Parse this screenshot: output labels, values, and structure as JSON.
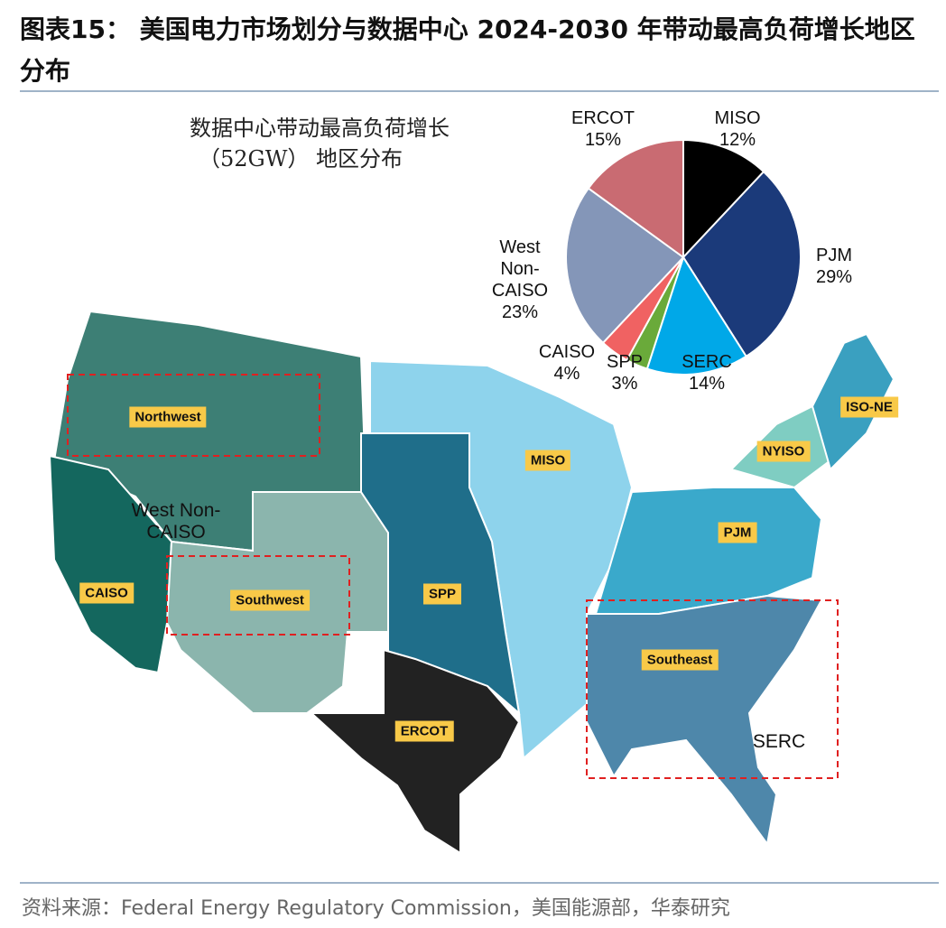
{
  "header": {
    "title": "图表15： 美国电力市场划分与数据中心 2024-2030 年带动最高负荷增长地区分布"
  },
  "chart_data": {
    "type": "pie",
    "title": [
      "数据中心带动最高负荷增长",
      "（52GW） 地区分布"
    ],
    "categories": [
      "MISO",
      "PJM",
      "SERC",
      "SPP",
      "CAISO",
      "West Non-CAISO",
      "ERCOT"
    ],
    "values": [
      12,
      29,
      14,
      3,
      4,
      23,
      15
    ],
    "value_labels": [
      "12%",
      "29%",
      "14%",
      "3%",
      "4%",
      "23%",
      "15%"
    ],
    "colors": [
      "#000000",
      "#1b3a7a",
      "#00a8e8",
      "#6aaa3a",
      "#f06262",
      "#8496b8",
      "#c96b72"
    ]
  },
  "map": {
    "tags": [
      "Northwest",
      "CAISO",
      "Southwest",
      "SPP",
      "ERCOT",
      "MISO",
      "PJM",
      "NYISO",
      "ISO-NE",
      "Southeast"
    ],
    "labels": [
      "West Non-CAISO",
      "SERC"
    ]
  },
  "footer": {
    "source": "资料来源：Federal Energy Regulatory Commission，美国能源部，华泰研究"
  }
}
